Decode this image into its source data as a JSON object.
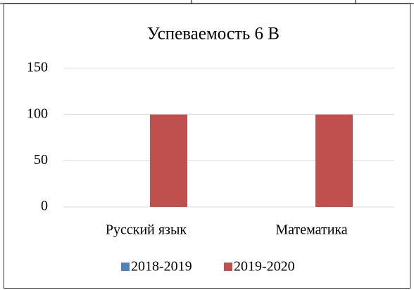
{
  "chart_data": {
    "type": "bar",
    "title": "Успеваемость 6 В",
    "categories": [
      "Русский язык",
      "Математика"
    ],
    "series": [
      {
        "name": "2018-2019",
        "color": "#4f81bd",
        "values": [
          0,
          0
        ]
      },
      {
        "name": "2019-2020",
        "color": "#c0504d",
        "values": [
          100,
          100
        ]
      }
    ],
    "ylim": [
      0,
      150
    ],
    "yticks": [
      0,
      50,
      100,
      150
    ],
    "grid": true,
    "legend": "bottom"
  }
}
